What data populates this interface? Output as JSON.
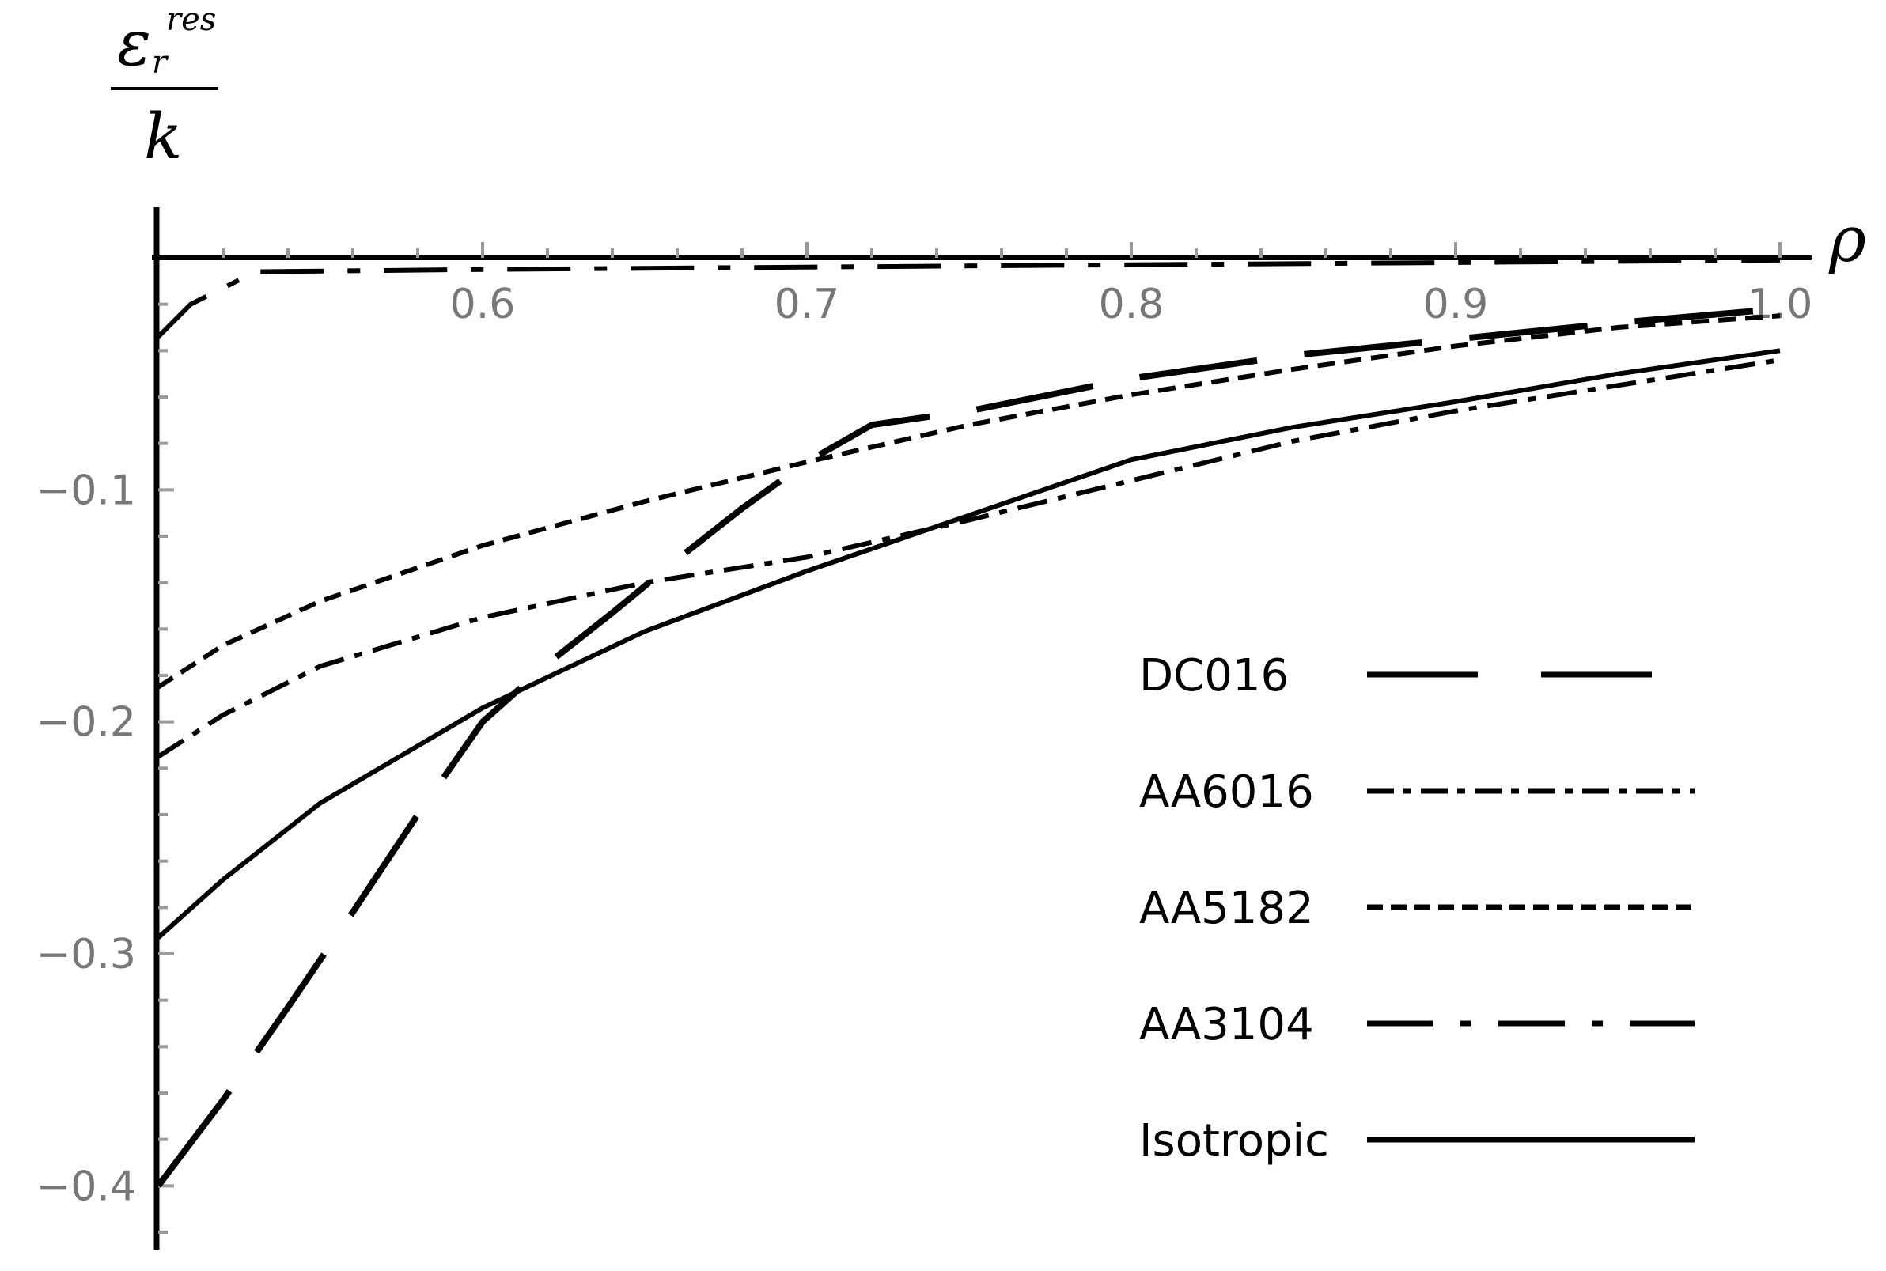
{
  "chart_data": {
    "type": "line",
    "xlabel": "ρ",
    "ylabel": {
      "numerator_symbol": "ε",
      "numerator_superscript": "res",
      "numerator_subscript": "r",
      "denominator": "k"
    },
    "xlim": [
      0.5,
      1.0
    ],
    "ylim": [
      -0.42,
      0.0
    ],
    "x_ticks": [
      {
        "value": 0.6,
        "label": "0.6"
      },
      {
        "value": 0.7,
        "label": "0.7"
      },
      {
        "value": 0.8,
        "label": "0.8"
      },
      {
        "value": 0.9,
        "label": "0.9"
      },
      {
        "value": 1.0,
        "label": "1.0"
      }
    ],
    "y_ticks": [
      {
        "value": -0.1,
        "label": "−0.1"
      },
      {
        "value": -0.2,
        "label": "−0.2"
      },
      {
        "value": -0.3,
        "label": "−0.3"
      },
      {
        "value": -0.4,
        "label": "−0.4"
      }
    ],
    "grid": false,
    "legend_position": "bottom-right",
    "series": [
      {
        "name": "DC016",
        "style": "long-dash",
        "points": [
          [
            0.5,
            -0.4
          ],
          [
            0.52,
            -0.363
          ],
          [
            0.54,
            -0.323
          ],
          [
            0.56,
            -0.282
          ],
          [
            0.58,
            -0.24
          ],
          [
            0.6,
            -0.2
          ],
          [
            0.62,
            -0.175
          ],
          [
            0.64,
            -0.153
          ],
          [
            0.66,
            -0.13
          ],
          [
            0.68,
            -0.108
          ],
          [
            0.7,
            -0.088
          ],
          [
            0.72,
            -0.072
          ],
          [
            0.75,
            -0.066
          ],
          [
            0.8,
            -0.052
          ],
          [
            0.85,
            -0.042
          ],
          [
            0.9,
            -0.035
          ],
          [
            0.95,
            -0.028
          ],
          [
            1.0,
            -0.022
          ]
        ]
      },
      {
        "name": "AA6016",
        "style": "dash-dot",
        "points": [
          [
            0.5,
            -0.215
          ],
          [
            0.52,
            -0.197
          ],
          [
            0.55,
            -0.176
          ],
          [
            0.6,
            -0.155
          ],
          [
            0.65,
            -0.14
          ],
          [
            0.7,
            -0.129
          ],
          [
            0.75,
            -0.113
          ],
          [
            0.8,
            -0.096
          ],
          [
            0.85,
            -0.079
          ],
          [
            0.9,
            -0.066
          ],
          [
            0.95,
            -0.055
          ],
          [
            1.0,
            -0.044
          ]
        ]
      },
      {
        "name": "AA5182",
        "style": "short-dash",
        "points": [
          [
            0.5,
            -0.185
          ],
          [
            0.52,
            -0.167
          ],
          [
            0.55,
            -0.148
          ],
          [
            0.6,
            -0.124
          ],
          [
            0.65,
            -0.105
          ],
          [
            0.7,
            -0.088
          ],
          [
            0.75,
            -0.072
          ],
          [
            0.8,
            -0.059
          ],
          [
            0.85,
            -0.048
          ],
          [
            0.9,
            -0.038
          ],
          [
            0.95,
            -0.03
          ],
          [
            1.0,
            -0.025
          ]
        ]
      },
      {
        "name": "AA3104",
        "style": "long-dash-dot-dot",
        "points": [
          [
            0.5,
            -0.034
          ],
          [
            0.51,
            -0.02
          ],
          [
            0.53,
            -0.006
          ],
          [
            0.6,
            -0.005
          ],
          [
            0.7,
            -0.004
          ],
          [
            0.8,
            -0.003
          ],
          [
            0.9,
            -0.002
          ],
          [
            1.0,
            -0.001
          ]
        ]
      },
      {
        "name": "Isotropic",
        "style": "solid",
        "points": [
          [
            0.5,
            -0.293
          ],
          [
            0.52,
            -0.268
          ],
          [
            0.55,
            -0.235
          ],
          [
            0.6,
            -0.194
          ],
          [
            0.65,
            -0.161
          ],
          [
            0.7,
            -0.135
          ],
          [
            0.75,
            -0.111
          ],
          [
            0.8,
            -0.087
          ],
          [
            0.85,
            -0.073
          ],
          [
            0.9,
            -0.062
          ],
          [
            0.95,
            -0.05
          ],
          [
            1.0,
            -0.04
          ]
        ]
      }
    ]
  }
}
